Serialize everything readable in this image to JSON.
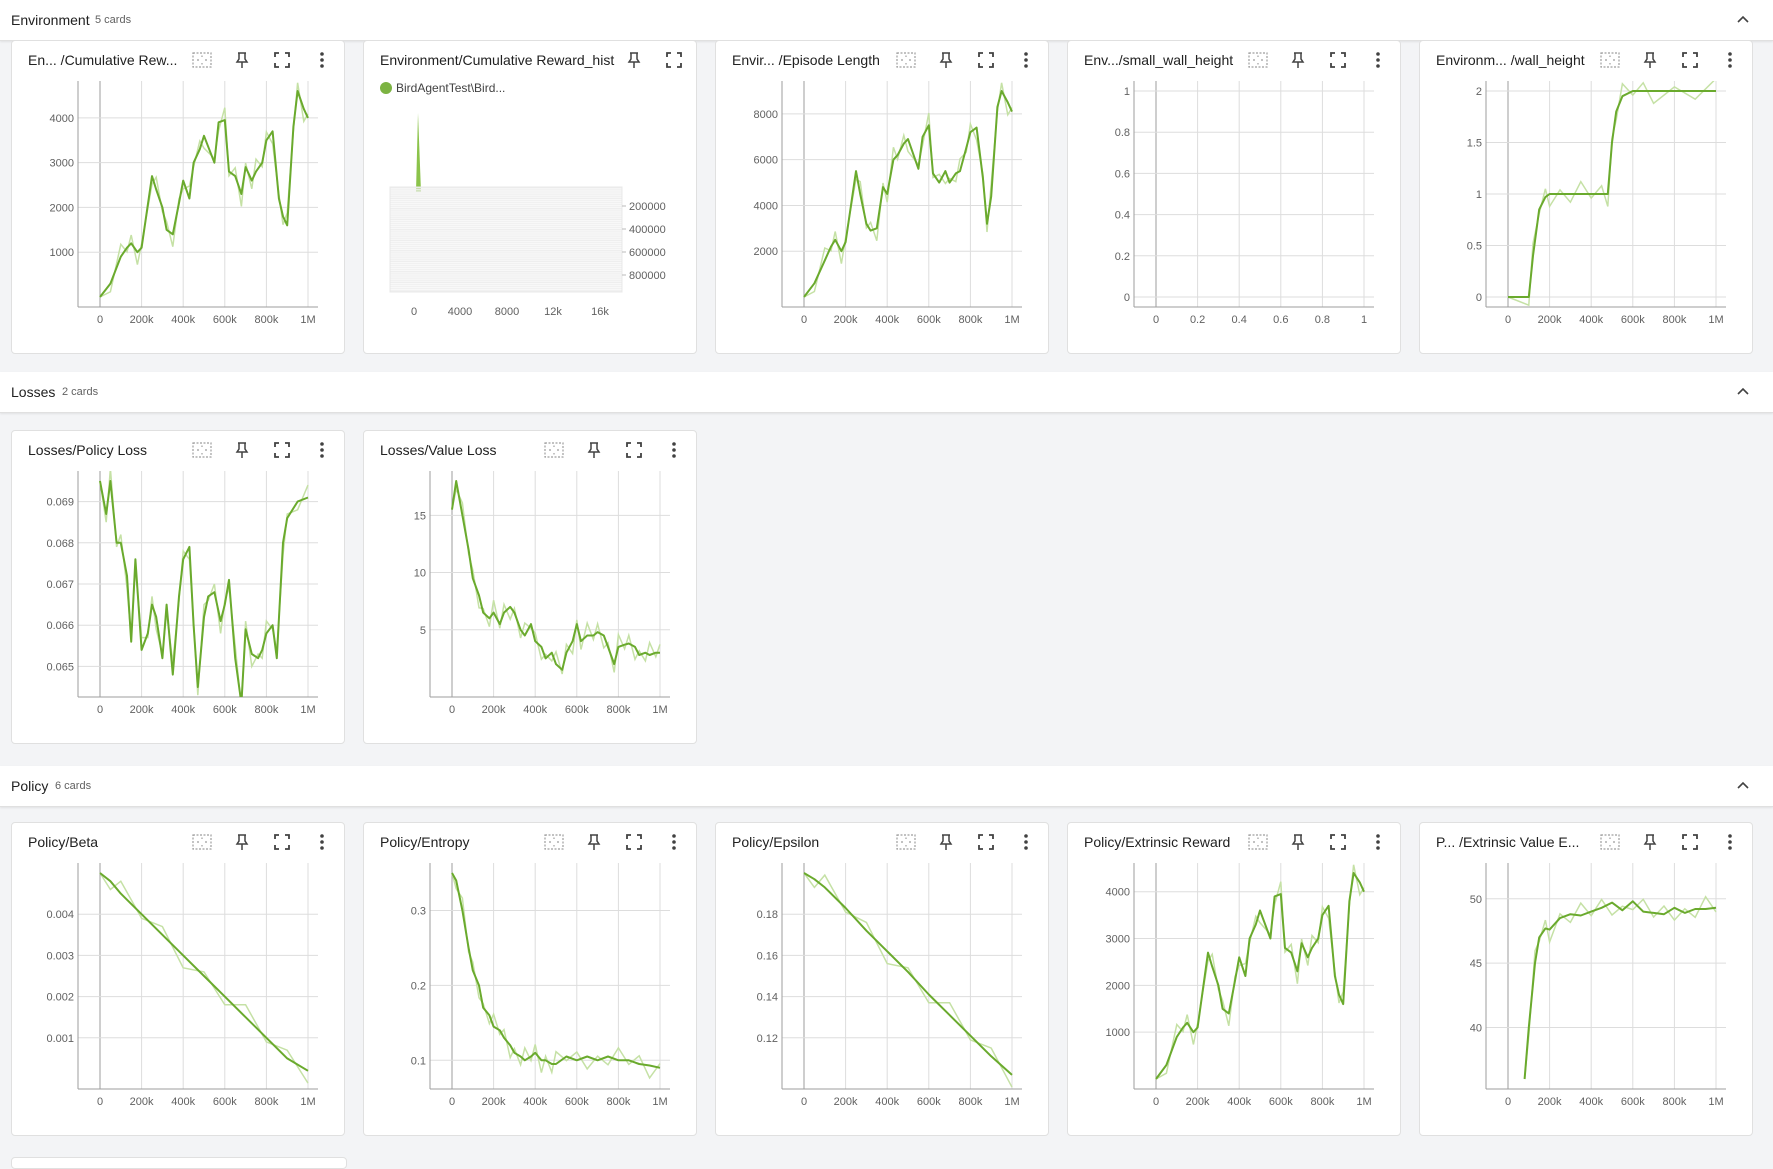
{
  "sections": [
    {
      "title": "Environment",
      "count": "5 cards"
    },
    {
      "title": "Losses",
      "count": "2 cards"
    },
    {
      "title": "Policy",
      "count": "6 cards"
    }
  ],
  "colors": {
    "line": "#6aaa2d",
    "line_light": "#c5e1a5",
    "grid": "#dddddd",
    "axis": "#9e9e9e",
    "legend": "#7cb342"
  },
  "icons": [
    "fit-domain-icon",
    "pin-icon",
    "fullscreen-icon",
    "more-vert-icon",
    "chevron-up-icon"
  ],
  "cards": [
    {
      "title": "En... /Cumulative Rew...",
      "section": "Environment"
    },
    {
      "title": "Environment/Cumulative Reward_hist",
      "section": "Environment",
      "legend": "BirdAgentTest\\Bird..."
    },
    {
      "title": "Envir... /Episode Length",
      "section": "Environment"
    },
    {
      "title": "Env.../small_wall_height",
      "section": "Environment"
    },
    {
      "title": "Environm... /wall_height",
      "section": "Environment"
    },
    {
      "title": "Losses/Policy Loss",
      "section": "Losses"
    },
    {
      "title": "Losses/Value Loss",
      "section": "Losses"
    },
    {
      "title": "Policy/Beta",
      "section": "Policy"
    },
    {
      "title": "Policy/Entropy",
      "section": "Policy"
    },
    {
      "title": "Policy/Epsilon",
      "section": "Policy"
    },
    {
      "title": "Policy/Extrinsic Reward",
      "section": "Policy"
    },
    {
      "title": "P... /Extrinsic Value E...",
      "section": "Policy"
    }
  ],
  "chart_data": [
    {
      "type": "line",
      "x_ticks": [
        "0",
        "200k",
        "400k",
        "600k",
        "800k",
        "1M"
      ],
      "y_ticks": [
        "1000",
        "2000",
        "3000",
        "4000"
      ],
      "xlim": [
        0,
        1000000
      ],
      "ylim": [
        0,
        4600
      ],
      "x": [
        0,
        50000,
        100000,
        130000,
        150000,
        180000,
        200000,
        250000,
        270000,
        300000,
        320000,
        350000,
        380000,
        400000,
        430000,
        450000,
        480000,
        500000,
        550000,
        570000,
        600000,
        620000,
        650000,
        680000,
        700000,
        730000,
        750000,
        780000,
        800000,
        830000,
        860000,
        880000,
        900000,
        930000,
        950000,
        980000,
        1000000
      ],
      "y": [
        0,
        300,
        900,
        1100,
        1200,
        1000,
        1100,
        2700,
        2400,
        2000,
        1500,
        1400,
        2100,
        2600,
        2200,
        3000,
        3300,
        3600,
        3000,
        3900,
        3950,
        2800,
        2700,
        2300,
        2900,
        2600,
        2800,
        3000,
        3500,
        3700,
        2200,
        1800,
        1600,
        3800,
        4600,
        4200,
        4000
      ]
    },
    {
      "type": "histogram",
      "legend": [
        "BirdAgentTest\\Bird..."
      ],
      "x_ticks": [
        "0",
        "4000",
        "8000",
        "12k",
        "16k"
      ],
      "y_ticks": [
        "200000",
        "400000",
        "600000",
        "800000"
      ]
    },
    {
      "type": "line",
      "x_ticks": [
        "0",
        "200k",
        "400k",
        "600k",
        "800k",
        "1M"
      ],
      "y_ticks": [
        "2000",
        "4000",
        "6000",
        "8000"
      ],
      "xlim": [
        0,
        1000000
      ],
      "ylim": [
        0,
        9000
      ],
      "x": [
        0,
        50000,
        100000,
        130000,
        150000,
        180000,
        200000,
        250000,
        270000,
        300000,
        320000,
        350000,
        380000,
        400000,
        430000,
        450000,
        480000,
        500000,
        550000,
        570000,
        600000,
        620000,
        650000,
        680000,
        700000,
        730000,
        750000,
        780000,
        800000,
        830000,
        860000,
        880000,
        900000,
        930000,
        950000,
        980000,
        1000000
      ],
      "y": [
        0,
        600,
        1600,
        2200,
        2500,
        2000,
        2400,
        5500,
        4500,
        3200,
        2900,
        3000,
        4800,
        4500,
        6000,
        6200,
        6700,
        6900,
        5600,
        7000,
        7500,
        5400,
        5000,
        5500,
        5000,
        5400,
        5500,
        6500,
        7200,
        7400,
        5200,
        3200,
        4400,
        8300,
        9000,
        8500,
        8100
      ]
    },
    {
      "type": "line",
      "x_ticks": [
        "0",
        "0.2",
        "0.4",
        "0.6",
        "0.8",
        "1"
      ],
      "y_ticks": [
        "0",
        "0.2",
        "0.4",
        "0.6",
        "0.8",
        "1"
      ],
      "xlim": [
        0,
        1
      ],
      "ylim": [
        0,
        1
      ],
      "x": [],
      "y": []
    },
    {
      "type": "line",
      "x_ticks": [
        "0",
        "200k",
        "400k",
        "600k",
        "800k",
        "1M"
      ],
      "y_ticks": [
        "0",
        "0.5",
        "1",
        "1.5",
        "2"
      ],
      "xlim": [
        0,
        1000000
      ],
      "ylim": [
        0,
        2
      ],
      "x": [
        0,
        100000,
        120000,
        150000,
        180000,
        200000,
        250000,
        300000,
        350000,
        400000,
        450000,
        480000,
        500000,
        520000,
        550000,
        600000,
        650000,
        700000,
        800000,
        900000,
        1000000
      ],
      "y": [
        0,
        0,
        0.4,
        0.85,
        0.97,
        1,
        1,
        1,
        1,
        1,
        1,
        1,
        1.5,
        1.8,
        1.95,
        2,
        2,
        2,
        2,
        2,
        2
      ]
    },
    {
      "type": "line",
      "x_ticks": [
        "0",
        "200k",
        "400k",
        "600k",
        "800k",
        "1M"
      ],
      "y_ticks": [
        "0.065",
        "0.066",
        "0.067",
        "0.068",
        "0.069"
      ],
      "xlim": [
        0,
        1000000
      ],
      "ylim": [
        0.0645,
        0.0695
      ],
      "x": [
        0,
        30000,
        50000,
        80000,
        100000,
        130000,
        150000,
        170000,
        200000,
        230000,
        250000,
        270000,
        300000,
        320000,
        350000,
        380000,
        400000,
        430000,
        450000,
        470000,
        500000,
        520000,
        550000,
        580000,
        600000,
        620000,
        650000,
        680000,
        700000,
        730000,
        760000,
        780000,
        800000,
        830000,
        850000,
        880000,
        900000,
        950000,
        1000000
      ],
      "y": [
        0.0695,
        0.0687,
        0.0695,
        0.068,
        0.068,
        0.0672,
        0.0656,
        0.0676,
        0.0654,
        0.0658,
        0.0665,
        0.0662,
        0.0652,
        0.0665,
        0.0648,
        0.0667,
        0.0676,
        0.0679,
        0.066,
        0.0645,
        0.0662,
        0.0667,
        0.0668,
        0.0661,
        0.0665,
        0.0671,
        0.0652,
        0.0641,
        0.0659,
        0.0653,
        0.0652,
        0.0654,
        0.0658,
        0.066,
        0.0652,
        0.068,
        0.0686,
        0.069,
        0.0691
      ]
    },
    {
      "type": "line",
      "x_ticks": [
        "0",
        "200k",
        "400k",
        "600k",
        "800k",
        "1M"
      ],
      "y_ticks": [
        "5",
        "10",
        "15"
      ],
      "xlim": [
        0,
        1000000
      ],
      "ylim": [
        0,
        18
      ],
      "x": [
        0,
        20000,
        50000,
        80000,
        100000,
        130000,
        150000,
        180000,
        200000,
        230000,
        250000,
        280000,
        300000,
        330000,
        350000,
        380000,
        400000,
        430000,
        450000,
        480000,
        500000,
        530000,
        550000,
        580000,
        600000,
        620000,
        650000,
        680000,
        700000,
        730000,
        750000,
        780000,
        800000,
        830000,
        850000,
        880000,
        900000,
        930000,
        950000,
        980000,
        1000000
      ],
      "y": [
        15.5,
        18,
        15,
        12,
        9.5,
        8,
        6.5,
        6,
        6.5,
        5.5,
        6.5,
        7,
        6.5,
        5,
        4.5,
        5.5,
        4,
        3.5,
        2.5,
        3,
        2,
        1.5,
        3,
        4,
        5.5,
        4,
        4.5,
        4.5,
        4.8,
        4.5,
        3.5,
        2,
        3.5,
        3.7,
        3.8,
        3.5,
        2.8,
        3,
        2.8,
        3,
        3
      ]
    },
    {
      "type": "line",
      "x_ticks": [
        "0",
        "200k",
        "400k",
        "600k",
        "800k",
        "1M"
      ],
      "y_ticks": [
        "0.001",
        "0.002",
        "0.003",
        "0.004"
      ],
      "xlim": [
        0,
        1000000
      ],
      "ylim": [
        0,
        0.005
      ],
      "x": [
        0,
        50000,
        100000,
        200000,
        300000,
        400000,
        500000,
        600000,
        700000,
        800000,
        900000,
        1000000
      ],
      "y": [
        0.005,
        0.0048,
        0.0045,
        0.004,
        0.0035,
        0.003,
        0.0025,
        0.002,
        0.0015,
        0.001,
        0.0005,
        0.0002
      ]
    },
    {
      "type": "line",
      "x_ticks": [
        "0",
        "200k",
        "400k",
        "600k",
        "800k",
        "1M"
      ],
      "y_ticks": [
        "0.1",
        "0.2",
        "0.3"
      ],
      "xlim": [
        0,
        1000000
      ],
      "ylim": [
        0.075,
        0.35
      ],
      "x": [
        0,
        20000,
        50000,
        80000,
        100000,
        130000,
        150000,
        180000,
        200000,
        230000,
        250000,
        280000,
        300000,
        330000,
        350000,
        380000,
        400000,
        430000,
        450000,
        480000,
        500000,
        550000,
        600000,
        650000,
        700000,
        750000,
        800000,
        850000,
        900000,
        950000,
        1000000
      ],
      "y": [
        0.35,
        0.34,
        0.3,
        0.25,
        0.22,
        0.2,
        0.17,
        0.16,
        0.145,
        0.14,
        0.13,
        0.12,
        0.11,
        0.105,
        0.1,
        0.105,
        0.11,
        0.1,
        0.1,
        0.095,
        0.095,
        0.105,
        0.1,
        0.105,
        0.1,
        0.105,
        0.1,
        0.1,
        0.095,
        0.093,
        0.09
      ]
    },
    {
      "type": "line",
      "x_ticks": [
        "0",
        "200k",
        "400k",
        "600k",
        "800k",
        "1M"
      ],
      "y_ticks": [
        "0.12",
        "0.14",
        "0.16",
        "0.18"
      ],
      "xlim": [
        0,
        1000000
      ],
      "ylim": [
        0.1,
        0.2
      ],
      "x": [
        0,
        50000,
        100000,
        200000,
        300000,
        400000,
        500000,
        600000,
        700000,
        800000,
        900000,
        1000000
      ],
      "y": [
        0.2,
        0.197,
        0.193,
        0.183,
        0.172,
        0.162,
        0.152,
        0.141,
        0.131,
        0.121,
        0.111,
        0.102
      ]
    },
    {
      "type": "line",
      "x_ticks": [
        "0",
        "200k",
        "400k",
        "600k",
        "800k",
        "1M"
      ],
      "y_ticks": [
        "1000",
        "2000",
        "3000",
        "4000"
      ],
      "xlim": [
        0,
        1000000
      ],
      "ylim": [
        0,
        4400
      ],
      "x": [
        0,
        50000,
        100000,
        130000,
        150000,
        180000,
        200000,
        250000,
        270000,
        300000,
        320000,
        350000,
        380000,
        400000,
        430000,
        450000,
        480000,
        500000,
        550000,
        570000,
        600000,
        620000,
        650000,
        680000,
        700000,
        730000,
        750000,
        780000,
        800000,
        830000,
        860000,
        880000,
        900000,
        930000,
        950000,
        980000,
        1000000
      ],
      "y": [
        0,
        300,
        900,
        1100,
        1200,
        1000,
        1100,
        2700,
        2400,
        2000,
        1500,
        1400,
        2100,
        2600,
        2200,
        3000,
        3300,
        3600,
        3000,
        3900,
        3950,
        2800,
        2700,
        2300,
        2900,
        2600,
        2800,
        3000,
        3500,
        3700,
        2200,
        1800,
        1600,
        3800,
        4400,
        4200,
        4000
      ]
    },
    {
      "type": "line",
      "x_ticks": [
        "0",
        "200k",
        "400k",
        "600k",
        "800k",
        "1M"
      ],
      "y_ticks": [
        "40",
        "45",
        "50"
      ],
      "xlim": [
        0,
        1000000
      ],
      "ylim": [
        36,
        52
      ],
      "x": [
        80000,
        100000,
        130000,
        150000,
        180000,
        200000,
        250000,
        300000,
        350000,
        400000,
        450000,
        500000,
        550000,
        600000,
        650000,
        700000,
        750000,
        800000,
        850000,
        900000,
        950000,
        1000000
      ],
      "y": [
        36,
        40,
        45,
        47,
        47.7,
        47.6,
        48.5,
        48.8,
        48.7,
        49,
        49.3,
        49.7,
        49.1,
        49.8,
        49,
        48.9,
        48.8,
        49.3,
        48.9,
        49.2,
        49.2,
        49.3
      ]
    }
  ]
}
